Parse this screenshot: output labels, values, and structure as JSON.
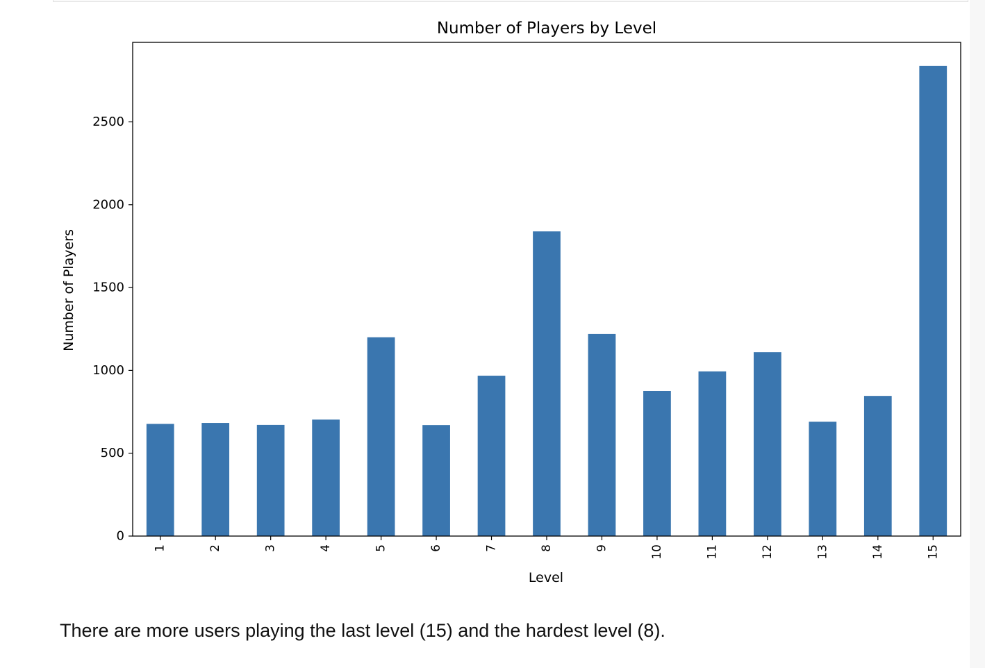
{
  "chart_data": {
    "type": "bar",
    "title": "Number of Players by Level",
    "xlabel": "Level",
    "ylabel": "Number of Players",
    "categories": [
      "1",
      "2",
      "3",
      "4",
      "5",
      "6",
      "7",
      "8",
      "9",
      "10",
      "11",
      "12",
      "13",
      "14",
      "15"
    ],
    "values": [
      677,
      683,
      671,
      703,
      1200,
      670,
      968,
      1839,
      1220,
      876,
      994,
      1110,
      690,
      846,
      2838
    ],
    "yticks": [
      0,
      500,
      1000,
      1500,
      2000,
      2500
    ],
    "ylim": [
      0,
      2980
    ],
    "xtick_rotation": "vertical",
    "bar_color": "#3a76af",
    "grid": false,
    "legend": false
  },
  "notebook": {
    "caption": "There are more users playing the last level (15) and the hardest level (8)."
  }
}
